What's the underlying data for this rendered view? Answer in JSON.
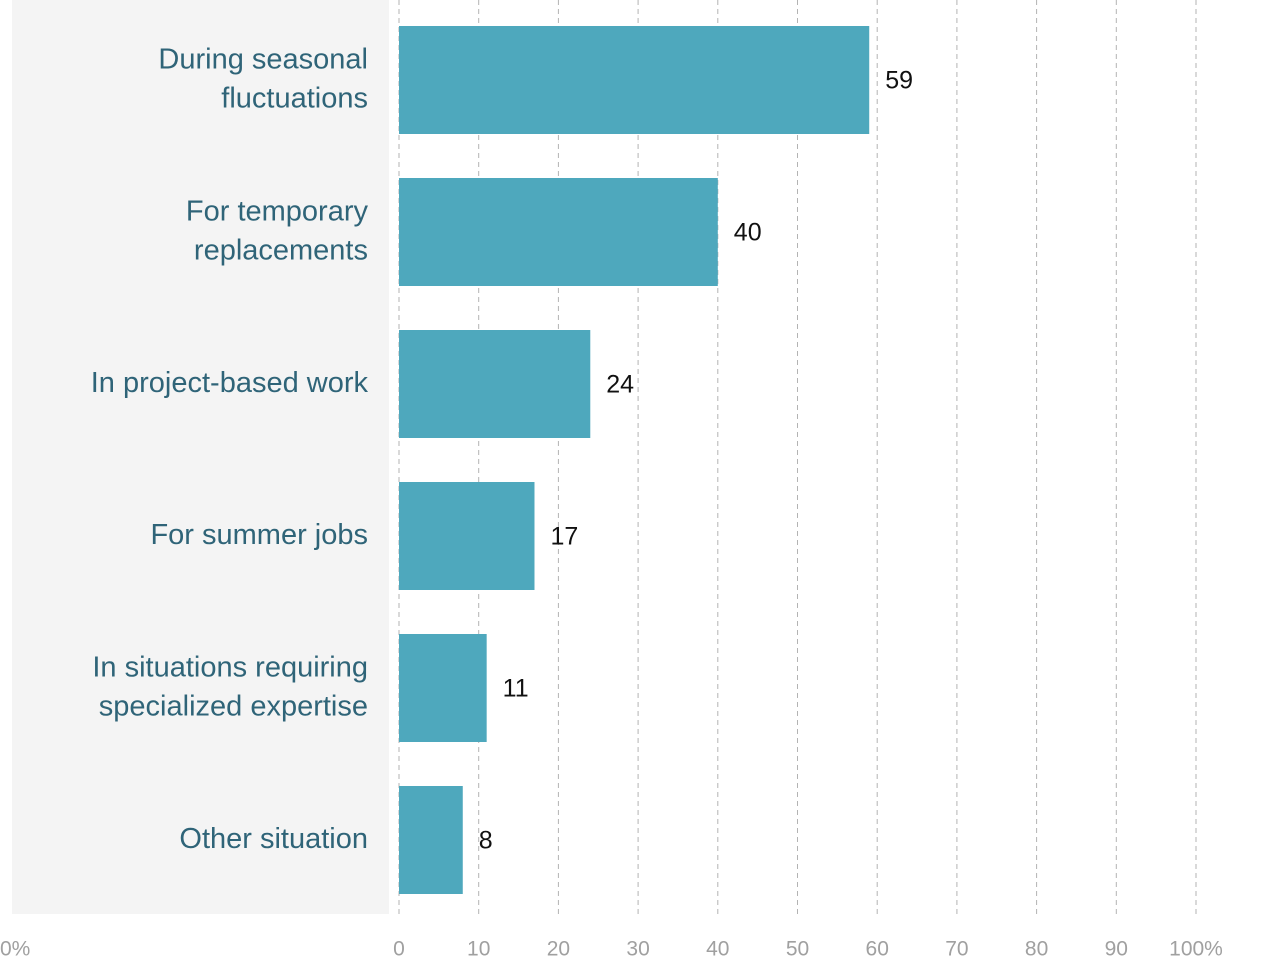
{
  "chart_data": {
    "type": "bar",
    "orientation": "horizontal",
    "categories": [
      "During seasonal fluctuations",
      "For temporary replacements",
      "In project-based work",
      "For summer jobs",
      "In situations requiring specialized expertise",
      "Other situation"
    ],
    "values": [
      59,
      40,
      24,
      17,
      11,
      8
    ],
    "color": "#4ea8bd",
    "xlim": [
      0,
      100
    ],
    "xticks": [
      0,
      10,
      20,
      30,
      40,
      50,
      60,
      70,
      80,
      90,
      {
        "value": 100,
        "label": "100%"
      }
    ],
    "grid": true,
    "annotations": [
      "0%"
    ]
  }
}
